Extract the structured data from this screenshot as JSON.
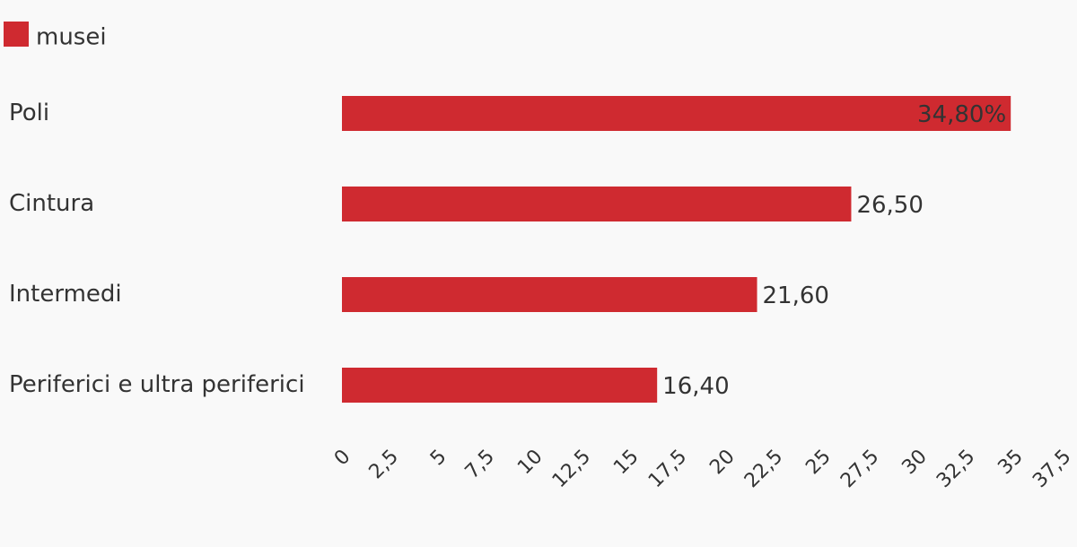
{
  "chart_data": {
    "type": "bar",
    "orientation": "horizontal",
    "categories": [
      "Poli",
      "Cintura",
      "Intermedi",
      "Periferici e ultra periferici"
    ],
    "series": [
      {
        "name": "musei",
        "color": "#cf2a30",
        "values": [
          34.8,
          26.5,
          21.6,
          16.4
        ],
        "value_labels": [
          "34,80%",
          "26,50",
          "21,60",
          "16,40"
        ]
      }
    ],
    "xlim": [
      0,
      37.5
    ],
    "xticks": [
      0,
      {
        "value": 2.5,
        "label": "2,5"
      },
      5,
      {
        "value": 7.5,
        "label": "7,5"
      },
      10,
      {
        "value": 12.5,
        "label": "12,5"
      },
      15,
      {
        "value": 17.5,
        "label": "17,5"
      },
      20,
      {
        "value": 22.5,
        "label": "22,5"
      },
      25,
      {
        "value": 27.5,
        "label": "27,5"
      },
      30,
      {
        "value": 32.5,
        "label": "32,5"
      },
      35,
      {
        "value": 37.5,
        "label": "37,5"
      }
    ],
    "grid": false,
    "legend": "top-left"
  }
}
